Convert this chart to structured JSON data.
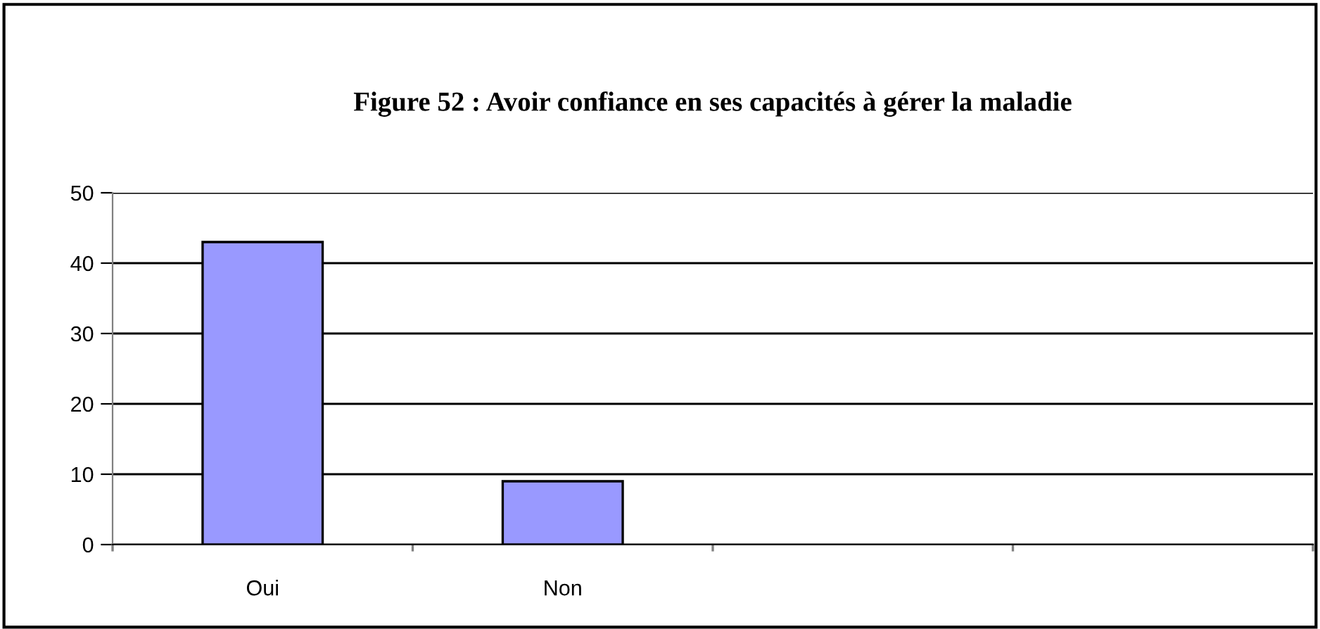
{
  "chart_data": {
    "type": "bar",
    "title": "Figure 52 : Avoir confiance en ses capacités à gérer la maladie",
    "categories": [
      "Oui",
      "Non",
      null,
      null
    ],
    "values": [
      43,
      9,
      null,
      null
    ],
    "color": "#9999ff",
    "ylim": [
      0,
      50
    ],
    "yticks": [
      0,
      10,
      20,
      30,
      40,
      50
    ],
    "grid": "y"
  }
}
